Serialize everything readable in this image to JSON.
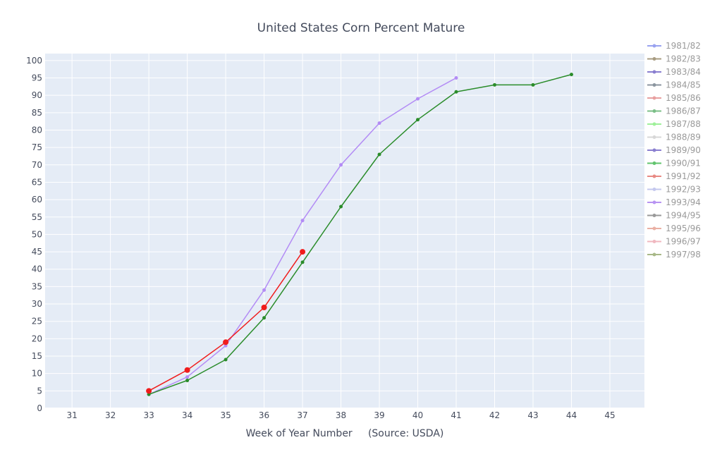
{
  "chart_data": {
    "type": "line",
    "title": "United States Corn Percent Mature",
    "xlabel": "Week of Year Number     (Source: USDA)",
    "ylabel": "",
    "xlim": [
      30.3,
      45.9
    ],
    "ylim": [
      0,
      102
    ],
    "x_ticks": [
      31,
      32,
      33,
      34,
      35,
      36,
      37,
      38,
      39,
      40,
      41,
      42,
      43,
      44,
      45
    ],
    "y_ticks": [
      0,
      5,
      10,
      15,
      20,
      25,
      30,
      35,
      40,
      45,
      50,
      55,
      60,
      65,
      70,
      75,
      80,
      85,
      90,
      95,
      100
    ],
    "grid": true,
    "legend_position": "right",
    "legend": [
      {
        "name": "1981/82",
        "color": "#9aa3f0"
      },
      {
        "name": "1982/83",
        "color": "#a89c82"
      },
      {
        "name": "1983/84",
        "color": "#8a7fd0"
      },
      {
        "name": "1984/85",
        "color": "#8c96a0"
      },
      {
        "name": "1985/86",
        "color": "#e8a0a0"
      },
      {
        "name": "1986/87",
        "color": "#7cbf88"
      },
      {
        "name": "1987/88",
        "color": "#9ff09a"
      },
      {
        "name": "1988/89",
        "color": "#d8d8d8"
      },
      {
        "name": "1989/90",
        "color": "#8a7fd0"
      },
      {
        "name": "1990/91",
        "color": "#62c46e"
      },
      {
        "name": "1991/92",
        "color": "#e88a84"
      },
      {
        "name": "1992/93",
        "color": "#c4c8ee"
      },
      {
        "name": "1993/94",
        "color": "#b894f2"
      },
      {
        "name": "1994/95",
        "color": "#9a9a9a"
      },
      {
        "name": "1995/96",
        "color": "#eab0a4"
      },
      {
        "name": "1996/97",
        "color": "#f0b8c0"
      },
      {
        "name": "1997/98",
        "color": "#a8b888"
      }
    ],
    "series": [
      {
        "color": "#b38cf5",
        "marker_r": 2.5,
        "width": 1.5,
        "x": [
          33,
          34,
          35,
          36,
          37,
          38,
          39,
          40,
          41
        ],
        "y": [
          4,
          9,
          18,
          34,
          54,
          70,
          82,
          89,
          95
        ]
      },
      {
        "color": "#2a8c2a",
        "marker_r": 2.5,
        "width": 1.5,
        "x": [
          33,
          34,
          35,
          36,
          37,
          38,
          39,
          40,
          41,
          42,
          43,
          44
        ],
        "y": [
          4,
          8,
          14,
          26,
          42,
          58,
          73,
          83,
          91,
          93,
          93,
          96
        ]
      },
      {
        "color": "#f01c1c",
        "marker_r": 4,
        "width": 1.5,
        "x": [
          33,
          34,
          35,
          36,
          37
        ],
        "y": [
          5,
          11,
          19,
          29,
          45
        ]
      }
    ]
  }
}
